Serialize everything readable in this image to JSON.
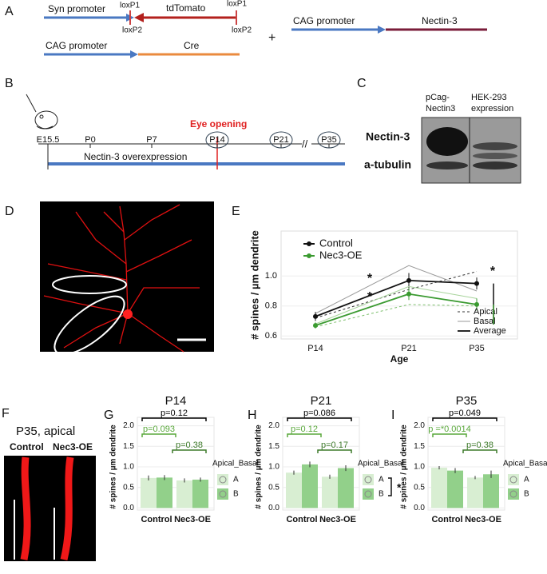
{
  "panel_labels": [
    "A",
    "B",
    "C",
    "D",
    "E",
    "F",
    "G",
    "H",
    "I"
  ],
  "diagram_a": {
    "syn_promoter": "Syn promoter",
    "loxp1_left": "loxP1",
    "tdtomato": "tdTomato",
    "loxp1_right": "loxP1",
    "loxp2_left": "loxP2",
    "loxp2_right": "loxP2",
    "cag_promoter_cre": "CAG promoter",
    "cre": "Cre",
    "plus": "+",
    "cag_promoter_nectin": "CAG promoter",
    "nectin3": "Nectin-3"
  },
  "timeline_b": {
    "ticks": [
      "E15.5",
      "P0",
      "P7",
      "P14",
      "P21",
      "P35"
    ],
    "eye_opening": "Eye opening",
    "overexpression": "Nectin-3 overexpression"
  },
  "blot_c": {
    "lane1": [
      "pCag-",
      "Nectin3"
    ],
    "lane2": [
      "HEK-293",
      "expression"
    ],
    "row1": "Nectin-3",
    "row2": "a-tubulin"
  },
  "image_f": {
    "title": "P35, apical",
    "left": "Control",
    "right": "Nec3-OE"
  },
  "chart_data": [
    {
      "type": "line",
      "categories": [
        "P14",
        "P21",
        "P35"
      ],
      "x_label": "Age",
      "y_label": "# spines / µm dendrite",
      "ylim": [
        0.58,
        1.3
      ],
      "yticks": [
        0.6,
        0.8,
        {
          "value": 1,
          "label": "1.0"
        }
      ],
      "series": [
        {
          "name": "Control",
          "color": "#111111",
          "values": [
            0.73,
            0.97,
            0.95
          ],
          "errors": [
            0.03,
            0.05,
            0.04
          ],
          "apical": [
            0.72,
            0.91,
            1.03
          ],
          "basal": [
            0.75,
            1.07,
            0.9
          ]
        },
        {
          "name": "Nec3-OE",
          "color": "#3a9a30",
          "values": [
            0.67,
            0.88,
            0.81
          ],
          "errors": [
            0.02,
            0.04,
            0.04
          ],
          "apical": [
            0.66,
            0.81,
            0.8
          ],
          "basal": [
            0.68,
            0.93,
            0.85
          ]
        }
      ],
      "line_style_legend": [
        "Apical",
        "Basal",
        "Average"
      ],
      "annotations": [
        "*",
        "*",
        "*"
      ]
    },
    {
      "type": "bar",
      "title": "P14",
      "categories": [
        "Control",
        "Nec3-OE"
      ],
      "y_label": "# spines / µm dendrite",
      "ylim": [
        -0.05,
        2.05
      ],
      "yticks": [
        {
          "value": 0,
          "label": "0.0"
        },
        0.5,
        {
          "value": 1,
          "label": "1.0"
        },
        1.5,
        {
          "value": 2,
          "label": "2.0"
        }
      ],
      "legend_title": "Apical_Basal",
      "series": [
        {
          "name": "A",
          "color": "#d8eed2",
          "values": [
            0.73,
            0.67
          ],
          "errors": [
            0.06,
            0.05
          ]
        },
        {
          "name": "B",
          "color": "#92d08a",
          "values": [
            0.74,
            0.69
          ],
          "errors": [
            0.06,
            0.05
          ]
        }
      ],
      "annotations": [
        {
          "text": "p=0.12",
          "color": "#000000"
        },
        {
          "text": "p=0.093",
          "color": "#5aa83c"
        },
        {
          "text": "p=0.38",
          "color": "#3d7a2a"
        }
      ]
    },
    {
      "type": "bar",
      "title": "P21",
      "categories": [
        "Control",
        "Nec3-OE"
      ],
      "y_label": "# spines / µm dendrite",
      "ylim": [
        -0.05,
        2.05
      ],
      "yticks": [
        {
          "value": 0,
          "label": "0.0"
        },
        0.5,
        {
          "value": 1,
          "label": "1.0"
        },
        1.5,
        {
          "value": 2,
          "label": "2.0"
        }
      ],
      "legend_title": "Apical_Basal",
      "series": [
        {
          "name": "A",
          "color": "#d8eed2",
          "values": [
            0.86,
            0.76
          ],
          "errors": [
            0.05,
            0.05
          ]
        },
        {
          "name": "B",
          "color": "#92d08a",
          "values": [
            1.06,
            0.97
          ],
          "errors": [
            0.07,
            0.07
          ]
        }
      ],
      "annotations": [
        {
          "text": "p=0.086",
          "color": "#000000"
        },
        {
          "text": "p=0.12",
          "color": "#5aa83c"
        },
        {
          "text": "p=0.17",
          "color": "#3d7a2a"
        }
      ],
      "legend_mark": "*"
    },
    {
      "type": "bar",
      "title": "P35",
      "categories": [
        "Control",
        "Nec3-OE"
      ],
      "y_label": "# spines / µm dendrite",
      "ylim": [
        -0.05,
        2.05
      ],
      "yticks": [
        {
          "value": 0,
          "label": "0.0"
        },
        0.5,
        {
          "value": 1,
          "label": "1.0"
        },
        1.5,
        {
          "value": 2,
          "label": "2.0"
        }
      ],
      "legend_title": "Apical_Basal",
      "series": [
        {
          "name": "A",
          "color": "#d8eed2",
          "values": [
            0.98,
            0.74
          ],
          "errors": [
            0.04,
            0.04
          ]
        },
        {
          "name": "B",
          "color": "#92d08a",
          "values": [
            0.91,
            0.82
          ],
          "errors": [
            0.06,
            0.09
          ]
        }
      ],
      "annotations": [
        {
          "text": "p=0.049",
          "color": "#000000"
        },
        {
          "text": "p =*0.0014",
          "color": "#5aa83c"
        },
        {
          "text": "p=0.38",
          "color": "#3d7a2a"
        }
      ]
    }
  ]
}
